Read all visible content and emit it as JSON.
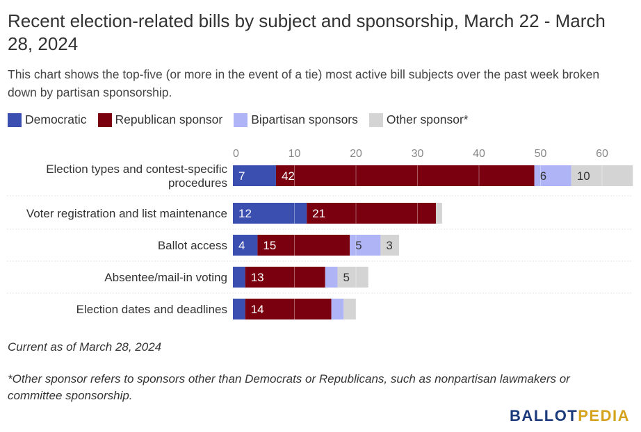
{
  "header": {
    "title": "Recent election-related bills by subject and sponsorship, March 22 - March 28, 2024",
    "subtitle": "This chart shows the top-five (or more in the event of a tie) most active bill subjects over the past week broken down by partisan sponsorship."
  },
  "legend": [
    {
      "label": "Democratic",
      "color": "#3a4fb0"
    },
    {
      "label": "Republican sponsor",
      "color": "#7a0010"
    },
    {
      "label": "Bipartisan sponsors",
      "color": "#aeb4f5"
    },
    {
      "label": "Other sponsor*",
      "color": "#d4d4d4"
    }
  ],
  "chart_data": {
    "type": "bar",
    "orientation": "horizontal",
    "stacked": true,
    "categories": [
      "Election types and contest-specific procedures",
      "Voter registration and list maintenance",
      "Ballot access",
      "Absentee/mail-in voting",
      "Election dates and deadlines"
    ],
    "series": [
      {
        "name": "Democratic",
        "color": "#3a4fb0",
        "values": [
          7,
          12,
          4,
          2,
          2
        ],
        "labels": [
          "7",
          "12",
          "4",
          "",
          ""
        ]
      },
      {
        "name": "Republican sponsor",
        "color": "#7a0010",
        "values": [
          42,
          21,
          15,
          13,
          14
        ],
        "labels": [
          "42",
          "21",
          "15",
          "13",
          "14"
        ]
      },
      {
        "name": "Bipartisan sponsors",
        "color": "#aeb4f5",
        "values": [
          6,
          0,
          5,
          2,
          2
        ],
        "labels": [
          "6",
          "",
          "5",
          "",
          ""
        ]
      },
      {
        "name": "Other sponsor*",
        "color": "#d4d4d4",
        "values": [
          10,
          1,
          3,
          5,
          2
        ],
        "labels": [
          "10",
          "",
          "3",
          "5",
          ""
        ]
      }
    ],
    "xlim": [
      0,
      65
    ],
    "xticks": [
      0,
      10,
      20,
      30,
      40,
      50,
      60
    ],
    "grid": true
  },
  "notes": {
    "current_as_of": "Current as of March 28, 2024",
    "footnote": "*Other sponsor refers to sponsors other than Democrats or Republicans, such as nonpartisan lawmakers or committee sponsorship."
  },
  "brand": {
    "part1": "BALLOT",
    "part2": "PEDIA"
  }
}
